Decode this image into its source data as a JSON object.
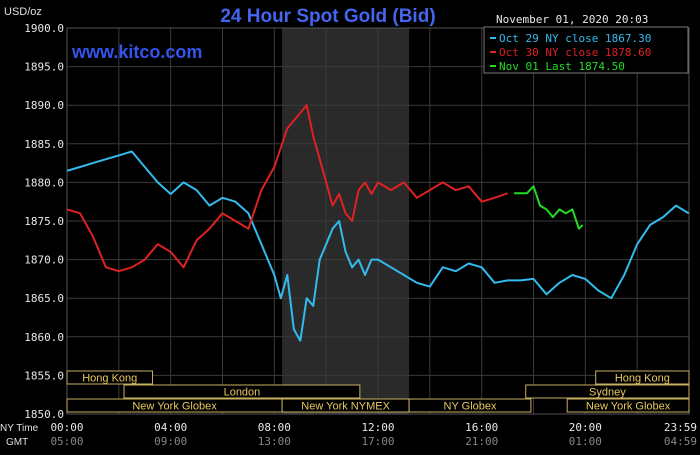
{
  "chart_data": {
    "type": "line",
    "title": "24 Hour Spot Gold (Bid)",
    "watermark": "www.kitco.com",
    "timestamp": "November 01, 2020 20:03",
    "ylabel": "USD/oz",
    "ylim": [
      1850,
      1900
    ],
    "y_ticks": [
      "1900.0",
      "1895.0",
      "1890.0",
      "1885.0",
      "1880.0",
      "1875.0",
      "1870.0",
      "1865.0",
      "1860.0",
      "1855.0",
      "1850.0"
    ],
    "x_axis_label_ny": "NY Time",
    "x_axis_label_gmt": "GMT",
    "x_ticks_ny": [
      "00:00",
      "04:00",
      "08:00",
      "12:00",
      "16:00",
      "20:00",
      "23:59"
    ],
    "x_ticks_gmt": [
      "05:00",
      "09:00",
      "13:00",
      "17:00",
      "21:00",
      "01:00",
      "04:59"
    ],
    "grid": true,
    "legend_position": "top-right",
    "series": [
      {
        "name": "Oct 29 NY close 1867.30",
        "color": "#33bbee",
        "x": [
          0,
          0.5,
          1,
          1.5,
          2,
          2.5,
          3,
          3.5,
          4,
          4.5,
          5,
          5.5,
          6,
          6.5,
          7,
          7.5,
          8,
          8.25,
          8.5,
          8.75,
          9,
          9.25,
          9.5,
          9.75,
          10,
          10.25,
          10.5,
          10.75,
          11,
          11.25,
          11.5,
          11.75,
          12,
          12.5,
          13,
          13.5,
          14,
          14.5,
          15,
          15.5,
          16,
          16.5,
          17,
          17.5,
          18,
          18.5,
          19,
          19.5,
          20,
          20.5,
          21,
          21.5,
          22,
          22.5,
          23,
          23.5,
          23.99
        ],
        "y": [
          1881.5,
          1882,
          1882.5,
          1883,
          1883.5,
          1884,
          1882,
          1880,
          1878.5,
          1880,
          1879,
          1877,
          1878,
          1877.5,
          1876,
          1872,
          1868,
          1865,
          1868,
          1861,
          1859.5,
          1865,
          1864,
          1870,
          1872,
          1874,
          1875,
          1871,
          1869,
          1870,
          1868,
          1870,
          1870,
          1869,
          1868,
          1867,
          1866.5,
          1869,
          1868.5,
          1869.5,
          1869,
          1867,
          1867.3,
          1867.3,
          1867.5,
          1865.5,
          1867,
          1868,
          1867.5,
          1866,
          1865,
          1868,
          1872,
          1874.5,
          1875.5,
          1877,
          1876
        ]
      },
      {
        "name": "Oct 30 NY close 1878.60",
        "color": "#dd2222",
        "x": [
          0,
          0.5,
          1,
          1.5,
          2,
          2.5,
          3,
          3.5,
          4,
          4.5,
          5,
          5.5,
          6,
          6.5,
          7,
          7.5,
          8,
          8.5,
          9,
          9.25,
          9.5,
          9.75,
          10,
          10.25,
          10.5,
          10.75,
          11,
          11.25,
          11.5,
          11.75,
          12,
          12.5,
          13,
          13.5,
          14,
          14.5,
          15,
          15.5,
          16,
          16.5,
          17
        ],
        "y": [
          1876.5,
          1876,
          1873,
          1869,
          1868.5,
          1869,
          1870,
          1872,
          1871,
          1869,
          1872.5,
          1874,
          1876,
          1875,
          1874,
          1879,
          1882,
          1887,
          1889,
          1890,
          1886,
          1883,
          1880,
          1877,
          1878.5,
          1876,
          1875,
          1879,
          1880,
          1878.5,
          1880,
          1879,
          1880,
          1878,
          1879,
          1880,
          1879,
          1879.5,
          1877.5,
          1878,
          1878.6
        ]
      },
      {
        "name": "Nov 01 Last 1874.50",
        "color": "#22dd22",
        "x": [
          17.25,
          17.75,
          18,
          18.25,
          18.5,
          18.75,
          19,
          19.25,
          19.5,
          19.75,
          19.9
        ],
        "y": [
          1878.6,
          1878.6,
          1879.5,
          1877,
          1876.5,
          1875.5,
          1876.5,
          1876,
          1876.5,
          1874,
          1874.5
        ]
      }
    ],
    "session_bands": [
      {
        "label": "Hong Kong",
        "row": 1,
        "start": 0,
        "end": 3.3
      },
      {
        "label": "Hong Kong",
        "row": 1,
        "start": 20.4,
        "end": 24
      },
      {
        "label": "London",
        "row": 2,
        "start": 2.2,
        "end": 11.3
      },
      {
        "label": "Sydney",
        "row": 2,
        "start": 17.7,
        "end": 24
      },
      {
        "label": "New York Globex",
        "row": 3,
        "start": 0,
        "end": 8.3
      },
      {
        "label": "New York NYMEX",
        "row": 3,
        "start": 8.3,
        "end": 13.2
      },
      {
        "label": "NY Globex",
        "row": 3,
        "start": 13.2,
        "end": 17.9
      },
      {
        "label": "New York Globex",
        "row": 3,
        "start": 19.3,
        "end": 24
      }
    ],
    "nymex_highlight": {
      "start": 8.3,
      "end": 13.2
    }
  }
}
